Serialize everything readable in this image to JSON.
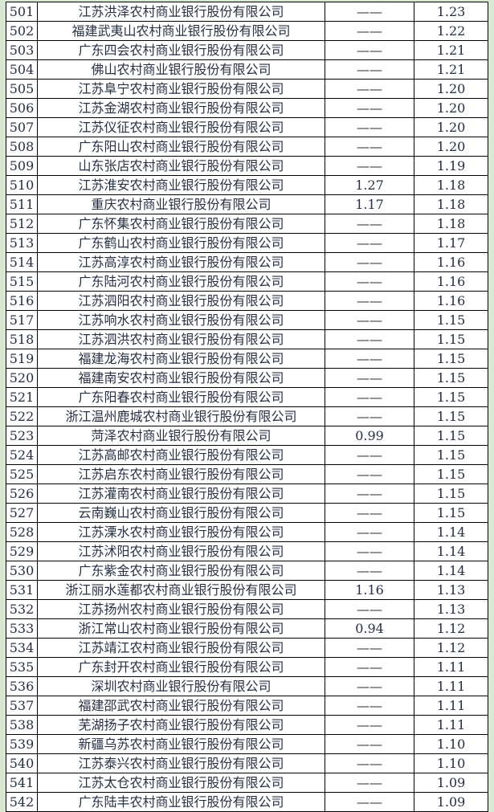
{
  "colors": {
    "page_background": "#d8e8d1",
    "cell_background": "#ffffff",
    "border": "#000000",
    "text": "#253042"
  },
  "table": {
    "rows": [
      {
        "rank": "501",
        "name": "江苏洪泽农村商业银行股份有限公司",
        "v1": "——",
        "v2": "1.23"
      },
      {
        "rank": "502",
        "name": "福建武夷山农村商业银行股份有限公司",
        "v1": "——",
        "v2": "1.22"
      },
      {
        "rank": "503",
        "name": "广东四会农村商业银行股份有限公司",
        "v1": "——",
        "v2": "1.21"
      },
      {
        "rank": "504",
        "name": "佛山农村商业银行股份有限公司",
        "v1": "——",
        "v2": "1.21"
      },
      {
        "rank": "505",
        "name": "江苏阜宁农村商业银行股份有限公司",
        "v1": "——",
        "v2": "1.20"
      },
      {
        "rank": "506",
        "name": "江苏金湖农村商业银行股份有限公司",
        "v1": "——",
        "v2": "1.20"
      },
      {
        "rank": "507",
        "name": "江苏仪征农村商业银行股份有限公司",
        "v1": "——",
        "v2": "1.20"
      },
      {
        "rank": "508",
        "name": "广东阳山农村商业银行股份有限公司",
        "v1": "——",
        "v2": "1.20"
      },
      {
        "rank": "509",
        "name": "山东张店农村商业银行股份有限公司",
        "v1": "——",
        "v2": "1.19"
      },
      {
        "rank": "510",
        "name": "江苏淮安农村商业银行股份有限公司",
        "v1": "1.27",
        "v2": "1.18"
      },
      {
        "rank": "511",
        "name": "重庆农村商业银行股份有限公司",
        "v1": "1.17",
        "v2": "1.18"
      },
      {
        "rank": "512",
        "name": "广东怀集农村商业银行股份有限公司",
        "v1": "——",
        "v2": "1.18"
      },
      {
        "rank": "513",
        "name": "广东鹤山农村商业银行股份有限公司",
        "v1": "——",
        "v2": "1.17"
      },
      {
        "rank": "514",
        "name": "江苏高淳农村商业银行股份有限公司",
        "v1": "——",
        "v2": "1.16"
      },
      {
        "rank": "515",
        "name": "广东陆河农村商业银行股份有限公司",
        "v1": "——",
        "v2": "1.16"
      },
      {
        "rank": "516",
        "name": "江苏泗阳农村商业银行股份有限公司",
        "v1": "——",
        "v2": "1.16"
      },
      {
        "rank": "517",
        "name": "江苏响水农村商业银行股份有限公司",
        "v1": "——",
        "v2": "1.15"
      },
      {
        "rank": "518",
        "name": "江苏泗洪农村商业银行股份有限公司",
        "v1": "——",
        "v2": "1.15"
      },
      {
        "rank": "519",
        "name": "福建龙海农村商业银行股份有限公司",
        "v1": "——",
        "v2": "1.15"
      },
      {
        "rank": "520",
        "name": "福建南安农村商业银行股份有限公司",
        "v1": "——",
        "v2": "1.15"
      },
      {
        "rank": "521",
        "name": "广东阳春农村商业银行股份有限公司",
        "v1": "——",
        "v2": "1.15"
      },
      {
        "rank": "522",
        "name": "浙江温州鹿城农村商业银行股份有限公司",
        "v1": "——",
        "v2": "1.15"
      },
      {
        "rank": "523",
        "name": "菏泽农村商业银行股份有限公司",
        "v1": "0.99",
        "v2": "1.15"
      },
      {
        "rank": "524",
        "name": "江苏高邮农村商业银行股份有限公司",
        "v1": "——",
        "v2": "1.15"
      },
      {
        "rank": "525",
        "name": "江苏启东农村商业银行股份有限公司",
        "v1": "——",
        "v2": "1.15"
      },
      {
        "rank": "526",
        "name": "江苏灌南农村商业银行股份有限公司",
        "v1": "——",
        "v2": "1.15"
      },
      {
        "rank": "527",
        "name": "云南巍山农村商业银行股份有限公司",
        "v1": "——",
        "v2": "1.15"
      },
      {
        "rank": "528",
        "name": "江苏溧水农村商业银行股份有限公司",
        "v1": "——",
        "v2": "1.14"
      },
      {
        "rank": "529",
        "name": "江苏沭阳农村商业银行股份有限公司",
        "v1": "——",
        "v2": "1.14"
      },
      {
        "rank": "530",
        "name": "广东紫金农村商业银行股份有限公司",
        "v1": "——",
        "v2": "1.14"
      },
      {
        "rank": "531",
        "name": "浙江丽水莲都农村商业银行股份有限公司",
        "v1": "1.16",
        "v2": "1.13"
      },
      {
        "rank": "532",
        "name": "江苏扬州农村商业银行股份有限公司",
        "v1": "——",
        "v2": "1.13"
      },
      {
        "rank": "533",
        "name": "浙江常山农村商业银行股份有限公司",
        "v1": "0.94",
        "v2": "1.12"
      },
      {
        "rank": "534",
        "name": "江苏靖江农村商业银行股份有限公司",
        "v1": "——",
        "v2": "1.12"
      },
      {
        "rank": "535",
        "name": "广东封开农村商业银行股份有限公司",
        "v1": "——",
        "v2": "1.11"
      },
      {
        "rank": "536",
        "name": "深圳农村商业银行股份有限公司",
        "v1": "——",
        "v2": "1.11"
      },
      {
        "rank": "537",
        "name": "福建邵武农村商业银行股份有限公司",
        "v1": "——",
        "v2": "1.11"
      },
      {
        "rank": "538",
        "name": "芜湖扬子农村商业银行股份有限公司",
        "v1": "——",
        "v2": "1.11"
      },
      {
        "rank": "539",
        "name": "新疆乌苏农村商业银行股份有限公司",
        "v1": "——",
        "v2": "1.10"
      },
      {
        "rank": "540",
        "name": "江苏泰兴农村商业银行股份有限公司",
        "v1": "——",
        "v2": "1.10"
      },
      {
        "rank": "541",
        "name": "江苏太仓农村商业银行股份有限公司",
        "v1": "——",
        "v2": "1.09"
      },
      {
        "rank": "542",
        "name": "广东陆丰农村商业银行股份有限公司",
        "v1": "——",
        "v2": "1.09"
      }
    ]
  }
}
